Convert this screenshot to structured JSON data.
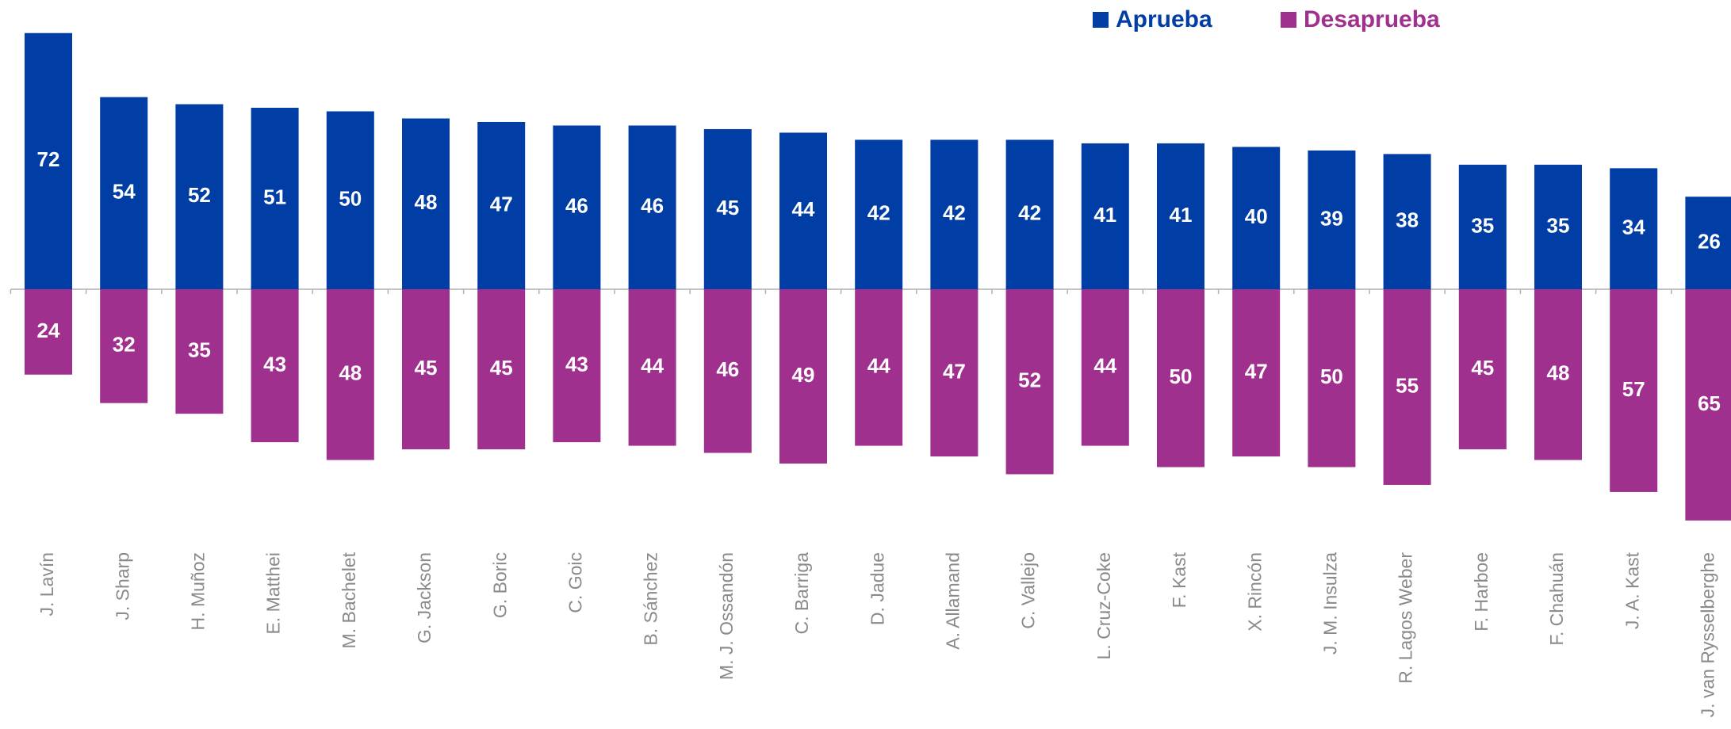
{
  "chart_data": {
    "type": "diverging-bar",
    "categories": [
      "J. Lavín",
      "J. Sharp",
      "H. Muñoz",
      "E. Matthei",
      "M. Bachelet",
      "G. Jackson",
      "G. Boric",
      "C. Goic",
      "B. Sánchez",
      "M. J. Ossandón",
      "C. Barriga",
      "D. Jadue",
      "A. Allamand",
      "C. Vallejo",
      "L. Cruz-Coke",
      "F. Kast",
      "X. Rincón",
      "J. M. Insulza",
      "R. Lagos Weber",
      "F. Harboe",
      "F. Chahuán",
      "J. A. Kast",
      "J. van Rysselberghe"
    ],
    "series": [
      {
        "name": "Aprueba",
        "color": "#003da5",
        "values": [
          72,
          54,
          52,
          51,
          50,
          48,
          47,
          46,
          46,
          45,
          44,
          42,
          42,
          42,
          41,
          41,
          40,
          39,
          38,
          35,
          35,
          34,
          26
        ]
      },
      {
        "name": "Desaprueba",
        "color": "#a0308e",
        "values": [
          24,
          32,
          35,
          43,
          48,
          45,
          45,
          43,
          44,
          46,
          49,
          44,
          47,
          52,
          44,
          50,
          47,
          50,
          55,
          45,
          48,
          57,
          65
        ]
      }
    ],
    "legend": "top-right"
  }
}
